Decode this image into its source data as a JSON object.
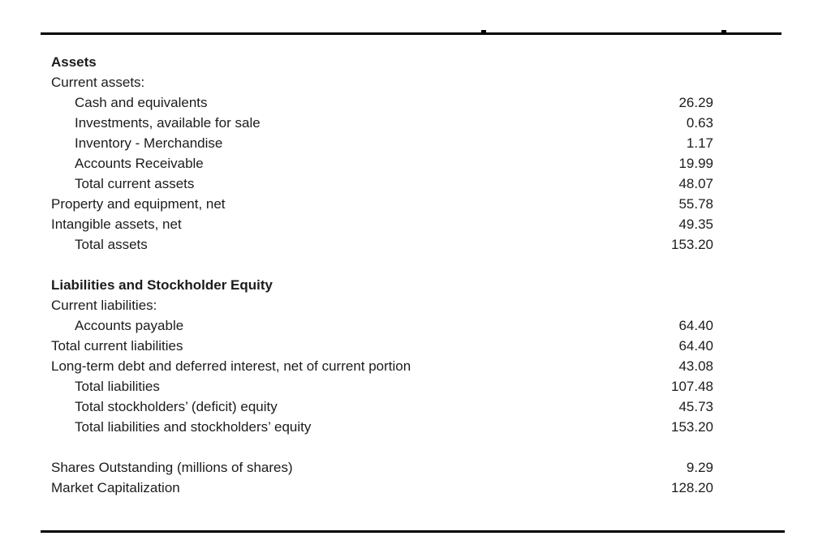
{
  "rows": [
    {
      "label": "Assets",
      "value": "",
      "bold": true,
      "indent": 0
    },
    {
      "label": "Current assets:",
      "value": "",
      "indent": 0
    },
    {
      "label": "Cash and equivalents",
      "value": "26.29",
      "indent": 1
    },
    {
      "label": "Investments, available for sale",
      "value": "0.63",
      "indent": 1
    },
    {
      "label": "Inventory - Merchandise",
      "value": "1.17",
      "indent": 1
    },
    {
      "label": "Accounts Receivable",
      "value": "19.99",
      "indent": 1
    },
    {
      "label": "Total current assets",
      "value": "48.07",
      "indent": 1
    },
    {
      "label": "Property and equipment, net",
      "value": "55.78",
      "indent": 0
    },
    {
      "label": "Intangible assets, net",
      "value": "49.35",
      "indent": 0
    },
    {
      "label": "Total assets",
      "value": "153.20",
      "indent": 1
    },
    {
      "spacer": true
    },
    {
      "label": "Liabilities and Stockholder Equity",
      "value": "",
      "bold": true,
      "indent": 0
    },
    {
      "label": "Current liabilities:",
      "value": "",
      "indent": 0
    },
    {
      "label": "Accounts payable",
      "value": "64.40",
      "indent": 1
    },
    {
      "label": "Total current liabilities",
      "value": "64.40",
      "indent": 0
    },
    {
      "label": "Long-term debt and deferred interest, net of current portion",
      "value": "43.08",
      "indent": 0
    },
    {
      "label": "Total liabilities",
      "value": "107.48",
      "indent": 1
    },
    {
      "label": "Total stockholders’ (deficit) equity",
      "value": "45.73",
      "indent": 1
    },
    {
      "label": "Total liabilities and stockholders’ equity",
      "value": "153.20",
      "indent": 1
    },
    {
      "spacer": true
    },
    {
      "label": "Shares Outstanding (millions of shares)",
      "value": "9.29",
      "indent": 0
    },
    {
      "label": "Market Capitalization",
      "value": "128.20",
      "indent": 0
    }
  ]
}
